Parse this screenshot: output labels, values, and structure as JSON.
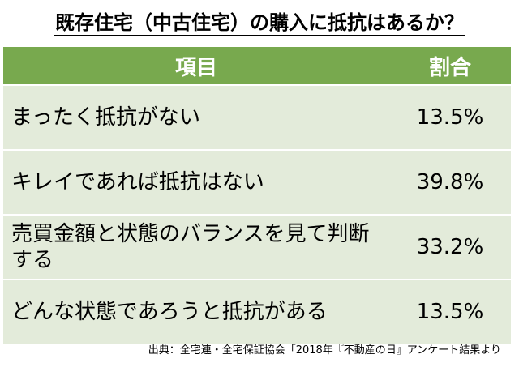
{
  "title": "既存住宅（中古住宅）の購入に抵抗はあるか？",
  "table": {
    "headers": {
      "item": "項目",
      "ratio": "割合"
    },
    "rows": [
      {
        "item": "まったく抵抗がない",
        "ratio": "13.5%"
      },
      {
        "item": "キレイであれば抵抗はない",
        "ratio": "39.8%"
      },
      {
        "item": "売買金額と状態のバランスを見て判断する",
        "ratio": "33.2%"
      },
      {
        "item": "どんな状態であろうと抵抗がある",
        "ratio": "13.5%"
      }
    ]
  },
  "source": "出典：全宅連・全宅保証協会「2018年『不動産の日』アンケート結果より",
  "colors": {
    "header_bg": "#78a94e",
    "row_bg": "#e3ebda",
    "header_text": "#ffffff"
  }
}
